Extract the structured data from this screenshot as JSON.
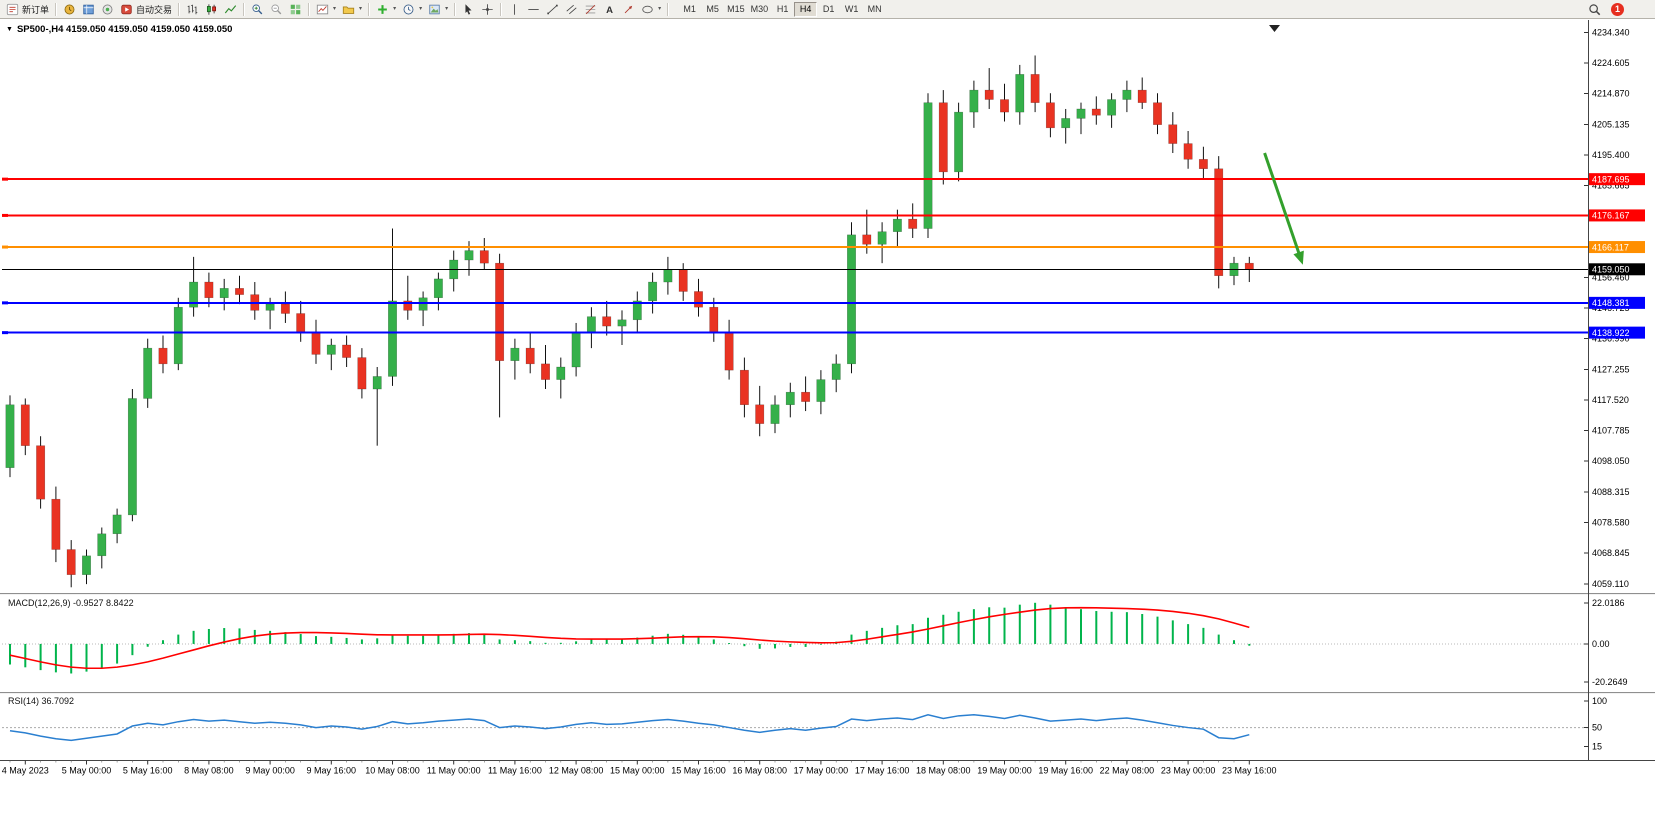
{
  "toolbar": {
    "new_order_label": "新订单",
    "auto_trading_label": "自动交易",
    "timeframes": [
      "M1",
      "M5",
      "M15",
      "M30",
      "H1",
      "H4",
      "D1",
      "W1",
      "MN"
    ],
    "active_timeframe": "H4",
    "notification_count": "1"
  },
  "chart_header": {
    "title": "SP500-,H4 4159.050 4159.050 4159.050 4159.050"
  },
  "colors": {
    "candle_up": "#35b04a",
    "candle_down": "#e93322",
    "wick": "#111111",
    "line_red": "#ff0000",
    "line_orange": "#ff8f00",
    "line_blue": "#0000ff",
    "current_price_line": "#000000",
    "macd_histogram": "#00b44b",
    "macd_signal": "#ff0000",
    "rsi_line": "#2a7fd0",
    "arrow_green": "#33a02c"
  },
  "chart_data": {
    "type": "candlestick",
    "symbol": "SP500-",
    "period": "H4",
    "candles": [
      [
        4096,
        4119,
        4093,
        4116
      ],
      [
        4116,
        4118,
        4100,
        4103
      ],
      [
        4103,
        4106,
        4083,
        4086
      ],
      [
        4086,
        4090,
        4066,
        4070
      ],
      [
        4070,
        4073,
        4058,
        4062
      ],
      [
        4062,
        4070,
        4059,
        4068
      ],
      [
        4068,
        4077,
        4064,
        4075
      ],
      [
        4075,
        4083,
        4072,
        4081
      ],
      [
        4081,
        4121,
        4079,
        4118
      ],
      [
        4118,
        4137,
        4115,
        4134
      ],
      [
        4134,
        4138,
        4126,
        4129
      ],
      [
        4129,
        4150,
        4127,
        4147
      ],
      [
        4147,
        4163,
        4144,
        4155
      ],
      [
        4155,
        4158,
        4147,
        4150
      ],
      [
        4150,
        4156,
        4146,
        4153
      ],
      [
        4153,
        4157,
        4148,
        4151
      ],
      [
        4151,
        4155,
        4143,
        4146
      ],
      [
        4146,
        4150,
        4140,
        4148
      ],
      [
        4148,
        4152,
        4142,
        4145
      ],
      [
        4145,
        4149,
        4136,
        4139
      ],
      [
        4139,
        4143,
        4129,
        4132
      ],
      [
        4132,
        4137,
        4127,
        4135
      ],
      [
        4135,
        4138,
        4128,
        4131
      ],
      [
        4131,
        4134,
        4118,
        4121
      ],
      [
        4121,
        4128,
        4103,
        4125
      ],
      [
        4125,
        4172,
        4122,
        4149
      ],
      [
        4149,
        4157,
        4143,
        4146
      ],
      [
        4146,
        4152,
        4141,
        4150
      ],
      [
        4150,
        4158,
        4146,
        4156
      ],
      [
        4156,
        4165,
        4152,
        4162
      ],
      [
        4162,
        4168,
        4157,
        4165
      ],
      [
        4165,
        4169,
        4159,
        4161
      ],
      [
        4161,
        4164,
        4112,
        4130
      ],
      [
        4130,
        4137,
        4124,
        4134
      ],
      [
        4134,
        4139,
        4126,
        4129
      ],
      [
        4129,
        4135,
        4121,
        4124
      ],
      [
        4124,
        4131,
        4118,
        4128
      ],
      [
        4128,
        4142,
        4125,
        4139
      ],
      [
        4139,
        4147,
        4134,
        4144
      ],
      [
        4144,
        4149,
        4138,
        4141
      ],
      [
        4141,
        4146,
        4135,
        4143
      ],
      [
        4143,
        4152,
        4139,
        4149
      ],
      [
        4149,
        4158,
        4145,
        4155
      ],
      [
        4155,
        4163,
        4151,
        4159
      ],
      [
        4159,
        4161,
        4149,
        4152
      ],
      [
        4152,
        4156,
        4144,
        4147
      ],
      [
        4147,
        4150,
        4136,
        4139
      ],
      [
        4139,
        4143,
        4124,
        4127
      ],
      [
        4127,
        4131,
        4112,
        4116
      ],
      [
        4116,
        4122,
        4106,
        4110
      ],
      [
        4110,
        4119,
        4107,
        4116
      ],
      [
        4116,
        4123,
        4112,
        4120
      ],
      [
        4120,
        4125,
        4114,
        4117
      ],
      [
        4117,
        4127,
        4113,
        4124
      ],
      [
        4124,
        4132,
        4120,
        4129
      ],
      [
        4129,
        4174,
        4126,
        4170
      ],
      [
        4170,
        4178,
        4164,
        4167
      ],
      [
        4167,
        4174,
        4161,
        4171
      ],
      [
        4171,
        4178,
        4166,
        4175
      ],
      [
        4175,
        4180,
        4169,
        4172
      ],
      [
        4172,
        4215,
        4169,
        4212
      ],
      [
        4212,
        4216,
        4186,
        4190
      ],
      [
        4190,
        4212,
        4187,
        4209
      ],
      [
        4209,
        4219,
        4204,
        4216
      ],
      [
        4216,
        4223,
        4210,
        4213
      ],
      [
        4213,
        4218,
        4206,
        4209
      ],
      [
        4209,
        4224,
        4205,
        4221
      ],
      [
        4221,
        4227,
        4209,
        4212
      ],
      [
        4212,
        4215,
        4201,
        4204
      ],
      [
        4204,
        4210,
        4199,
        4207
      ],
      [
        4207,
        4212,
        4202,
        4210
      ],
      [
        4210,
        4214,
        4205,
        4208
      ],
      [
        4208,
        4215,
        4204,
        4213
      ],
      [
        4213,
        4219,
        4209,
        4216
      ],
      [
        4216,
        4220,
        4210,
        4212
      ],
      [
        4212,
        4215,
        4202,
        4205
      ],
      [
        4205,
        4209,
        4196,
        4199
      ],
      [
        4199,
        4203,
        4191,
        4194
      ],
      [
        4194,
        4198,
        4188,
        4191
      ],
      [
        4191,
        4195,
        4153,
        4157
      ],
      [
        4157,
        4163,
        4154,
        4161
      ],
      [
        4161,
        4163,
        4155,
        4159.05
      ]
    ],
    "price_axis_labels": [
      4234.34,
      4224.605,
      4214.87,
      4205.135,
      4195.4,
      4185.665,
      4156.46,
      4146.725,
      4136.99,
      4127.255,
      4117.52,
      4107.785,
      4098.05,
      4088.315,
      4078.58,
      4068.845,
      4059.11
    ],
    "hlines": [
      {
        "price": 4187.695,
        "label": "4187.695",
        "color": "#ff0000",
        "width": 2
      },
      {
        "price": 4176.167,
        "label": "4176.167",
        "color": "#ff0000",
        "width": 2
      },
      {
        "price": 4166.117,
        "label": "4166.117",
        "color": "#ff8f00",
        "width": 2
      },
      {
        "price": 4148.381,
        "label": "4148.381",
        "color": "#0000ff",
        "width": 2
      },
      {
        "price": 4138.922,
        "label": "4138.922",
        "color": "#0000ff",
        "width": 2
      }
    ],
    "current_price": {
      "price": 4159.05,
      "label": "4159.050"
    },
    "trend_arrow": {
      "from_index": 82,
      "from_price": 4196,
      "to_index": 84.5,
      "to_price": 4160.5
    },
    "macd": {
      "title": "MACD(12,26,9)",
      "values_text": "-0.9527 8.8422",
      "axis_labels": [
        {
          "value": 22.0186,
          "label": "22.0186"
        },
        {
          "value": 0,
          "label": "0.00"
        },
        {
          "value": -20.2649,
          "label": "-20.2649"
        }
      ],
      "histogram": [
        -11,
        -12.5,
        -14,
        -15.2,
        -15.8,
        -14.8,
        -13,
        -10.5,
        -6,
        -1.5,
        2,
        5,
        7,
        8,
        8.5,
        8.3,
        7.5,
        7,
        6.3,
        5.3,
        4.2,
        3.8,
        3.2,
        2.4,
        3,
        5,
        4.4,
        4.4,
        4.9,
        5.4,
        5.8,
        5.2,
        2.4,
        2,
        1.5,
        0.6,
        0.6,
        1.4,
        2.4,
        2.4,
        2.4,
        3.4,
        4.4,
        5.4,
        4.9,
        3.9,
        2.4,
        0.5,
        -1.2,
        -2.6,
        -2.4,
        -1.6,
        -1.6,
        -0.4,
        1.2,
        5,
        7,
        8.6,
        10,
        10.6,
        14,
        15.6,
        17.2,
        18.6,
        19.6,
        19.4,
        21,
        22,
        21,
        19.6,
        18.6,
        17.6,
        17.2,
        17,
        16,
        14.6,
        12.6,
        10.6,
        8.6,
        5,
        2,
        -0.95
      ],
      "signal": [
        -6,
        -7.8,
        -9.6,
        -11.2,
        -12.4,
        -13,
        -13,
        -12.4,
        -11.2,
        -9.6,
        -7.6,
        -5.4,
        -3.2,
        -1,
        1,
        2.8,
        4.2,
        5.2,
        5.8,
        6.1,
        6.1,
        5.9,
        5.6,
        5.2,
        4.9,
        4.8,
        4.8,
        4.8,
        4.8,
        4.9,
        5.1,
        5.2,
        5,
        4.6,
        4.1,
        3.5,
        3,
        2.7,
        2.6,
        2.6,
        2.6,
        2.8,
        3.1,
        3.5,
        3.8,
        3.9,
        3.8,
        3.4,
        2.8,
        2.1,
        1.5,
        1.1,
        0.8,
        0.6,
        0.7,
        1.4,
        2.5,
        3.8,
        5.1,
        6.4,
        8,
        9.7,
        11.4,
        13,
        14.5,
        15.8,
        17,
        18.1,
        18.9,
        19.3,
        19.4,
        19.3,
        19.1,
        18.9,
        18.6,
        18.1,
        17.4,
        16.4,
        15.1,
        13.4,
        11.2,
        8.84
      ]
    },
    "rsi": {
      "title": "RSI(14)",
      "value_text": "36.7092",
      "level": 50,
      "axis_labels": [
        {
          "value": 100,
          "label": "100"
        },
        {
          "value": 50,
          "label": "50"
        },
        {
          "value": 15,
          "label": "15"
        }
      ],
      "values": [
        44,
        40,
        34,
        29,
        26,
        30,
        34,
        38,
        53,
        58,
        55,
        61,
        65,
        62,
        64,
        61,
        58,
        60,
        58,
        55,
        50,
        53,
        51,
        47,
        52,
        61,
        57,
        59,
        62,
        64,
        66,
        63,
        50,
        53,
        51,
        48,
        51,
        56,
        59,
        56,
        57,
        60,
        63,
        65,
        62,
        58,
        55,
        50,
        45,
        41,
        45,
        48,
        45,
        49,
        52,
        66,
        63,
        66,
        68,
        65,
        74,
        67,
        72,
        74,
        71,
        67,
        73,
        68,
        62,
        64,
        66,
        63,
        66,
        68,
        64,
        59,
        54,
        50,
        47,
        31,
        29,
        36.7
      ]
    },
    "time_labels": [
      "4 May 2023",
      "5 May 00:00",
      "5 May 16:00",
      "8 May 08:00",
      "9 May 00:00",
      "9 May 16:00",
      "10 May 08:00",
      "11 May 00:00",
      "11 May 16:00",
      "12 May 08:00",
      "15 May 00:00",
      "15 May 16:00",
      "16 May 08:00",
      "17 May 00:00",
      "17 May 16:00",
      "18 May 08:00",
      "19 May 00:00",
      "19 May 16:00",
      "22 May 08:00",
      "23 May 00:00",
      "23 May 16:00"
    ]
  }
}
